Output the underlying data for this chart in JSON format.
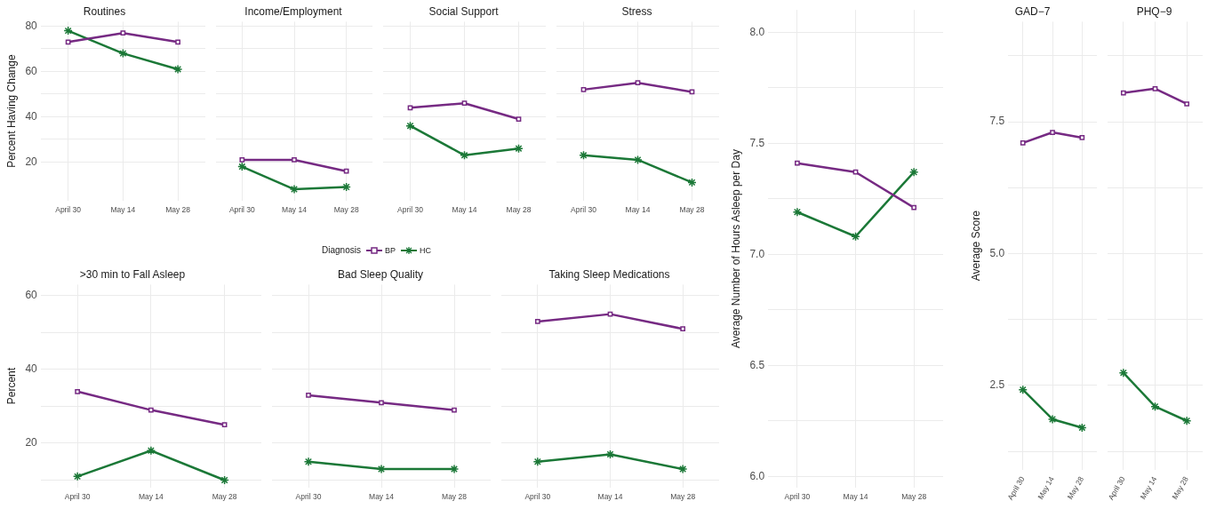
{
  "chart_data": [
    {
      "type": "line",
      "title": "Routines",
      "ylabel": "Percent Having Change",
      "legend": "bottom",
      "legend_title": "Diagnosis",
      "categories": [
        "April 30",
        "May 14",
        "May 28"
      ],
      "ylim": [
        3,
        82
      ],
      "yticks": [
        20,
        {
          "value": 30,
          "label": null
        },
        40,
        {
          "value": 50,
          "label": null
        },
        60,
        {
          "value": 70,
          "label": null
        },
        80
      ],
      "grid": true,
      "series": [
        {
          "name": "BP",
          "color": "#762a83",
          "marker": "square",
          "values": [
            73,
            77,
            73
          ]
        },
        {
          "name": "HC",
          "color": "#1b7837",
          "marker": "cross",
          "values": [
            78,
            68,
            61
          ]
        }
      ]
    },
    {
      "type": "line",
      "title": "Income/Employment",
      "categories": [
        "April 30",
        "May 14",
        "May 28"
      ],
      "ylim": [
        3,
        82
      ],
      "yticks": [
        20,
        {
          "value": 30,
          "label": null
        },
        40,
        {
          "value": 50,
          "label": null
        },
        60,
        {
          "value": 70,
          "label": null
        },
        80
      ],
      "grid": true,
      "tick_labels": "x",
      "series": [
        {
          "color": "#762a83",
          "marker": "square",
          "values": [
            21,
            21,
            16
          ]
        },
        {
          "color": "#1b7837",
          "marker": "cross",
          "values": [
            18,
            8,
            9
          ]
        }
      ]
    },
    {
      "type": "line",
      "title": "Social Support",
      "categories": [
        "April 30",
        "May 14",
        "May 28"
      ],
      "ylim": [
        3,
        82
      ],
      "yticks": [
        20,
        {
          "value": 30,
          "label": null
        },
        40,
        {
          "value": 50,
          "label": null
        },
        60,
        {
          "value": 70,
          "label": null
        },
        80
      ],
      "grid": true,
      "tick_labels": "x",
      "series": [
        {
          "color": "#762a83",
          "marker": "square",
          "values": [
            44,
            46,
            39
          ]
        },
        {
          "color": "#1b7837",
          "marker": "cross",
          "values": [
            36,
            23,
            26
          ]
        }
      ]
    },
    {
      "type": "line",
      "title": "Stress",
      "categories": [
        "April 30",
        "May 14",
        "May 28"
      ],
      "ylim": [
        3,
        82
      ],
      "yticks": [
        20,
        {
          "value": 30,
          "label": null
        },
        40,
        {
          "value": 50,
          "label": null
        },
        60,
        {
          "value": 70,
          "label": null
        },
        80
      ],
      "grid": true,
      "tick_labels": "x",
      "series": [
        {
          "color": "#762a83",
          "marker": "square",
          "values": [
            52,
            55,
            51
          ]
        },
        {
          "color": "#1b7837",
          "marker": "cross",
          "values": [
            23,
            21,
            11
          ]
        }
      ]
    },
    {
      "type": "line",
      "title": ">30 min to Fall Asleep",
      "ylabel": "Percent",
      "categories": [
        "April 30",
        "May 14",
        "May 28"
      ],
      "ylim": [
        8,
        63
      ],
      "yticks": [
        {
          "value": 10,
          "label": null
        },
        20,
        {
          "value": 30,
          "label": null
        },
        40,
        {
          "value": 50,
          "label": null
        },
        60
      ],
      "grid": true,
      "series": [
        {
          "color": "#762a83",
          "marker": "square",
          "values": [
            34,
            29,
            25
          ]
        },
        {
          "color": "#1b7837",
          "marker": "cross",
          "values": [
            11,
            18,
            10
          ]
        }
      ]
    },
    {
      "type": "line",
      "title": "Bad Sleep Quality",
      "categories": [
        "April 30",
        "May 14",
        "May 28"
      ],
      "ylim": [
        8,
        63
      ],
      "yticks": [
        {
          "value": 10,
          "label": null
        },
        20,
        {
          "value": 30,
          "label": null
        },
        40,
        {
          "value": 50,
          "label": null
        },
        60
      ],
      "grid": true,
      "tick_labels": "x",
      "series": [
        {
          "color": "#762a83",
          "marker": "square",
          "values": [
            33,
            31,
            29
          ]
        },
        {
          "color": "#1b7837",
          "marker": "cross",
          "values": [
            15,
            13,
            13
          ]
        }
      ]
    },
    {
      "type": "line",
      "title": "Taking Sleep Medications",
      "categories": [
        "April 30",
        "May 14",
        "May 28"
      ],
      "ylim": [
        8,
        63
      ],
      "yticks": [
        {
          "value": 10,
          "label": null
        },
        20,
        {
          "value": 30,
          "label": null
        },
        40,
        {
          "value": 50,
          "label": null
        },
        60
      ],
      "grid": true,
      "tick_labels": "x",
      "series": [
        {
          "color": "#762a83",
          "marker": "square",
          "values": [
            53,
            55,
            51
          ]
        },
        {
          "color": "#1b7837",
          "marker": "cross",
          "values": [
            15,
            17,
            13
          ]
        }
      ]
    },
    {
      "type": "line",
      "ylabel": "Average Number of Hours Asleep per Day",
      "categories": [
        "April 30",
        "May 14",
        "May 28"
      ],
      "ylim": [
        5.95,
        8.1
      ],
      "yticks": [
        {
          "value": 6,
          "label": "6.0"
        },
        {
          "value": 6.25,
          "label": null
        },
        6.5,
        {
          "value": 6.75,
          "label": null
        },
        {
          "value": 7,
          "label": "7.0"
        },
        {
          "value": 7.25,
          "label": null
        },
        7.5,
        {
          "value": 7.75,
          "label": null
        },
        {
          "value": 8,
          "label": "8.0"
        }
      ],
      "grid": true,
      "series": [
        {
          "color": "#762a83",
          "marker": "square",
          "values": [
            7.41,
            7.37,
            7.21
          ]
        },
        {
          "color": "#1b7837",
          "marker": "cross",
          "values": [
            7.19,
            7.08,
            7.37
          ]
        }
      ]
    },
    {
      "type": "line",
      "title": "GAD−7",
      "ylabel": "Average Score",
      "categories": [
        "April 30",
        "May 14",
        "May 28"
      ],
      "ylim": [
        0.9,
        9.4
      ],
      "yticks": [
        {
          "value": 1.25,
          "label": null
        },
        2.5,
        {
          "value": 3.75,
          "label": null
        },
        {
          "value": 5,
          "label": "5.0"
        },
        {
          "value": 6.25,
          "label": null
        },
        7.5,
        {
          "value": 8.75,
          "label": null
        }
      ],
      "grid": true,
      "series": [
        {
          "color": "#762a83",
          "marker": "square",
          "values": [
            7.1,
            7.3,
            7.2
          ]
        },
        {
          "color": "#1b7837",
          "marker": "cross",
          "values": [
            2.42,
            1.86,
            1.7
          ]
        }
      ]
    },
    {
      "type": "line",
      "title": "PHQ−9",
      "categories": [
        "April 30",
        "May 14",
        "May 28"
      ],
      "ylim": [
        0.9,
        9.4
      ],
      "yticks": [
        {
          "value": 1.25,
          "label": null
        },
        2.5,
        {
          "value": 3.75,
          "label": null
        },
        5,
        {
          "value": 6.25,
          "label": null
        },
        7.5,
        {
          "value": 8.75,
          "label": null
        }
      ],
      "grid": true,
      "tick_labels": "x",
      "series": [
        {
          "color": "#762a83",
          "marker": "square",
          "values": [
            8.05,
            8.13,
            7.84
          ]
        },
        {
          "color": "#1b7837",
          "marker": "cross",
          "values": [
            2.74,
            2.1,
            1.83
          ]
        }
      ]
    }
  ]
}
